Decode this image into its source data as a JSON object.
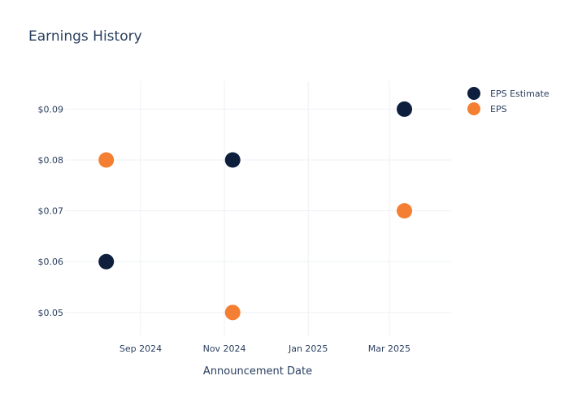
{
  "chart_data": {
    "type": "scatter",
    "title": "Earnings History",
    "xlabel": "Announcement Date",
    "ylabel": "",
    "x_ticks": [
      "Sep 2024",
      "Nov 2024",
      "Jan 2025",
      "Mar 2025"
    ],
    "y_ticks": [
      "$0.05",
      "$0.06",
      "$0.07",
      "$0.08",
      "$0.09"
    ],
    "ylim": [
      0.0455,
      0.0955
    ],
    "xlim": [
      "2024-07-08",
      "2025-04-15"
    ],
    "grid": true,
    "legend_position": "top-right",
    "series": [
      {
        "name": "EPS Estimate",
        "color": "#0d1f3c",
        "points": [
          {
            "x": "2024-08-07",
            "y": 0.06
          },
          {
            "x": "2024-11-07",
            "y": 0.08
          },
          {
            "x": "2025-03-12",
            "y": 0.09
          }
        ]
      },
      {
        "name": "EPS",
        "color": "#f47f32",
        "points": [
          {
            "x": "2024-08-07",
            "y": 0.08
          },
          {
            "x": "2024-11-07",
            "y": 0.05
          },
          {
            "x": "2025-03-12",
            "y": 0.07
          }
        ]
      }
    ]
  }
}
